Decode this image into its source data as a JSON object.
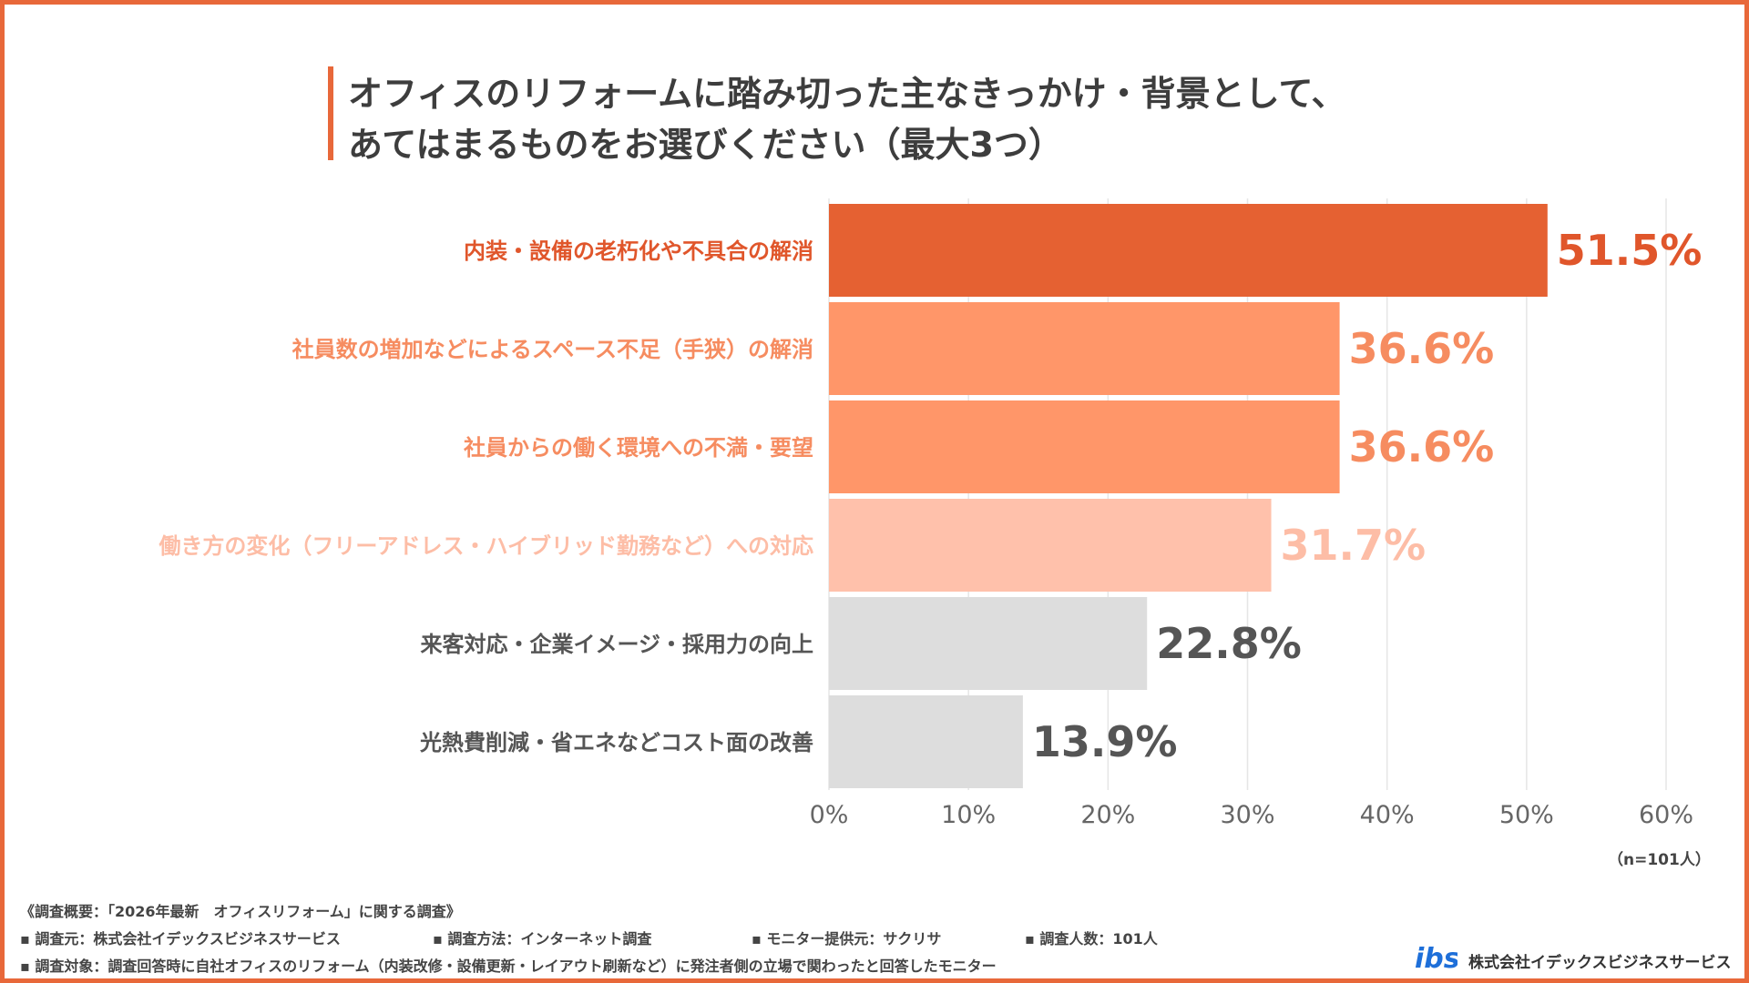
{
  "title": {
    "line1": "オフィスのリフォームに踏み切った主なきっかけ・背景として、",
    "line2": "あてはまるものをお選びください（最大3つ）"
  },
  "chart_data": {
    "type": "bar",
    "orientation": "horizontal",
    "categories": [
      "内装・設備の老朽化や不具合の解消",
      "社員数の増加などによるスペース不足（手狭）の解消",
      "社員からの働く環境への不満・要望",
      "働き方の変化（フリーアドレス・ハイブリッド勤務など）への対応",
      "来客対応・企業イメージ・採用力の向上",
      "光熱費削減・省エネなどコスト面の改善"
    ],
    "values": [
      51.5,
      36.6,
      36.6,
      31.7,
      22.8,
      13.9
    ],
    "value_labels": [
      "51.5%",
      "36.6%",
      "36.6%",
      "31.7%",
      "22.8%",
      "13.9%"
    ],
    "bar_colors": [
      "#E56132",
      "#FF9669",
      "#FF9669",
      "#FFC1AB",
      "#DDDDDD",
      "#DDDDDD"
    ],
    "label_colors": [
      "#E0562B",
      "#F68C60",
      "#F68C60",
      "#FDBDA6",
      "#555555",
      "#555555"
    ],
    "xlim": [
      0,
      60
    ],
    "xticks": [
      0,
      10,
      20,
      30,
      40,
      50,
      60
    ],
    "xtick_labels": [
      "0%",
      "10%",
      "20%",
      "30%",
      "40%",
      "50%",
      "60%"
    ],
    "grid": true,
    "legend": "none"
  },
  "sample_note": "（n=101人）",
  "footer": {
    "heading": "《調査概要：「2026年最新　オフィスリフォーム」に関する調査》",
    "item1": "▪ 調査元：株式会社イデックスビジネスサービス",
    "item2": "▪ 調査方法：インターネット調査",
    "item3": "▪ モニター提供元：サクリサ",
    "item4": "▪ 調査人数：101人",
    "item5": "▪ 調査対象：調査回答時に自社オフィスのリフォーム（内装改修・設備更新・レイアウト刷新など）に発注者側の立場で関わったと回答したモニター"
  },
  "logo": {
    "text": "ibs",
    "color": "#1E6FD9",
    "icon": "ibs-logo-icon"
  },
  "company": "株式会社イデックスビジネスサービス",
  "colors": {
    "frame": "#E8683A",
    "accent": "#E8683A"
  }
}
